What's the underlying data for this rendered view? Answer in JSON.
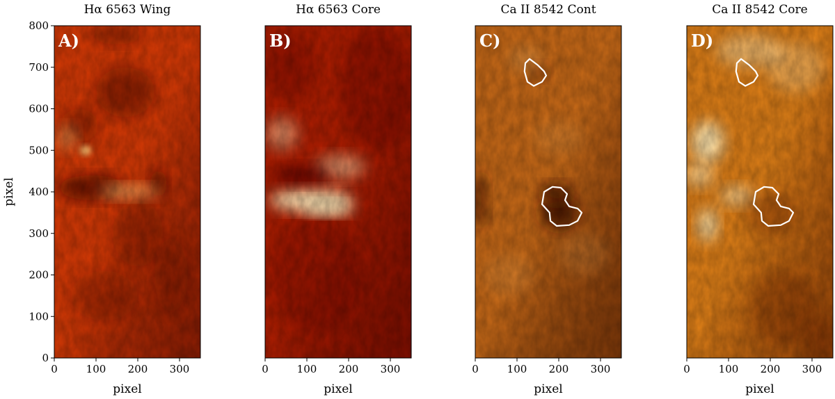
{
  "figure": {
    "panels": [
      {
        "id": "A",
        "title": "Hα 6563 Wing",
        "letter": "A)",
        "colormap": "halpha-wing",
        "base_color": "#d63a06",
        "highlight_color": "#ffc070",
        "dark_color": "#5a0a02",
        "show_y_axis": true,
        "contours": false
      },
      {
        "id": "B",
        "title": "Hα 6563 Core",
        "letter": "B)",
        "colormap": "halpha-core",
        "base_color": "#b01e02",
        "highlight_color": "#fff0c0",
        "dark_color": "#5a0400",
        "show_y_axis": false,
        "contours": false
      },
      {
        "id": "C",
        "title": "Ca II 8542 Cont",
        "letter": "C)",
        "colormap": "caii-cont",
        "base_color": "#c86a18",
        "highlight_color": "#f0b060",
        "dark_color": "#4a1600",
        "show_y_axis": false,
        "contours": true
      },
      {
        "id": "D",
        "title": "Ca II 8542 Core",
        "letter": "D)",
        "colormap": "caii-core",
        "base_color": "#e08018",
        "highlight_color": "#fff0c0",
        "dark_color": "#6a2200",
        "show_y_axis": false,
        "contours": true
      }
    ],
    "x_axis": {
      "label": "pixel",
      "ticks": [
        0,
        100,
        200,
        300
      ],
      "range": [
        0,
        350
      ]
    },
    "y_axis": {
      "label": "pixel",
      "ticks": [
        0,
        100,
        200,
        300,
        400,
        500,
        600,
        700,
        800
      ],
      "range": [
        0,
        800
      ]
    },
    "contour_color": "#ffffff"
  }
}
